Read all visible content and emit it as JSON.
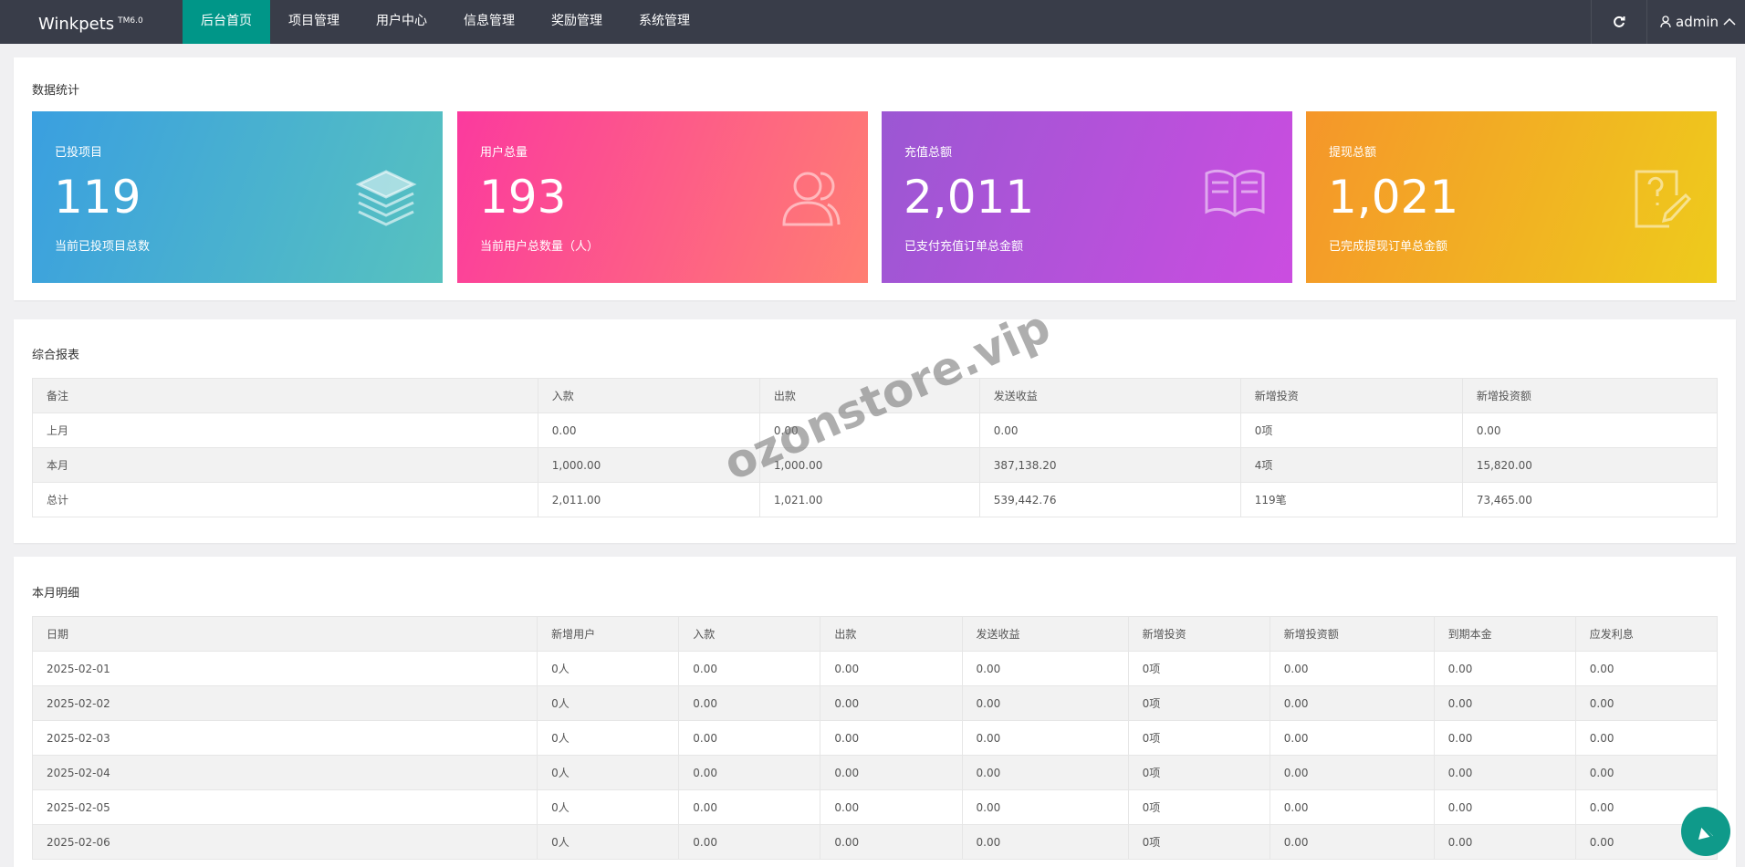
{
  "header": {
    "logo": "Winkpets",
    "logo_sup": "TM6.0",
    "menu": [
      "后台首页",
      "项目管理",
      "用户中心",
      "信息管理",
      "奖励管理",
      "系统管理"
    ],
    "user": "admin"
  },
  "stats": {
    "title": "数据统计",
    "cards": [
      {
        "label": "已投项目",
        "value": "119",
        "desc": "当前已投项目总数"
      },
      {
        "label": "用户总量",
        "value": "193",
        "desc": "当前用户总数量（人）"
      },
      {
        "label": "充值总额",
        "value": "2,011",
        "desc": "已支付充值订单总金额"
      },
      {
        "label": "提现总额",
        "value": "1,021",
        "desc": "已完成提现订单总金额"
      }
    ]
  },
  "report": {
    "title": "综合报表",
    "columns": [
      "备注",
      "入款",
      "出款",
      "发送收益",
      "新增投资",
      "新增投资额"
    ],
    "rows": [
      [
        "上月",
        "0.00",
        "0.00",
        "0.00",
        "0项",
        "0.00"
      ],
      [
        "本月",
        "1,000.00",
        "1,000.00",
        "387,138.20",
        "4项",
        "15,820.00"
      ],
      [
        "总计",
        "2,011.00",
        "1,021.00",
        "539,442.76",
        "119笔",
        "73,465.00"
      ]
    ]
  },
  "detail": {
    "title": "本月明细",
    "columns": [
      "日期",
      "新增用户",
      "入款",
      "出款",
      "发送收益",
      "新增投资",
      "新增投资额",
      "到期本金",
      "应发利息"
    ],
    "rows": [
      [
        "2025-02-01",
        "0人",
        "0.00",
        "0.00",
        "0.00",
        "0项",
        "0.00",
        "0.00",
        "0.00"
      ],
      [
        "2025-02-02",
        "0人",
        "0.00",
        "0.00",
        "0.00",
        "0项",
        "0.00",
        "0.00",
        "0.00"
      ],
      [
        "2025-02-03",
        "0人",
        "0.00",
        "0.00",
        "0.00",
        "0项",
        "0.00",
        "0.00",
        "0.00"
      ],
      [
        "2025-02-04",
        "0人",
        "0.00",
        "0.00",
        "0.00",
        "0项",
        "0.00",
        "0.00",
        "0.00"
      ],
      [
        "2025-02-05",
        "0人",
        "0.00",
        "0.00",
        "0.00",
        "0项",
        "0.00",
        "0.00",
        "0.00"
      ],
      [
        "2025-02-06",
        "0人",
        "0.00",
        "0.00",
        "0.00",
        "0项",
        "0.00",
        "0.00",
        "0.00"
      ]
    ]
  },
  "watermark": "ozonstore.vip"
}
